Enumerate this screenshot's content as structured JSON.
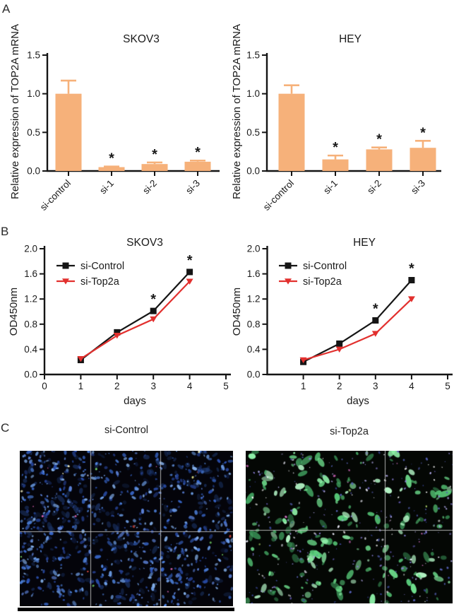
{
  "figure": {
    "panel_a_label": "A",
    "panel_b_label": "B",
    "panel_c_label": "C",
    "panel_c_images": [
      {
        "label": "si-Control",
        "description": "fluorescence micrograph, dense blue-stained nuclei on black background, 2x3 stitched grid",
        "background": "#04040a",
        "seed": 1337,
        "layers": [
          {
            "count": 220,
            "rmin": 1.6,
            "rmax": 3.4,
            "stretch": 2.2,
            "alpha_min": 0.2,
            "alpha_max": 0.5,
            "colors": [
              "#1d3a86",
              "#27498e",
              "#203f7a",
              "#2c55a8"
            ]
          },
          {
            "count": 760,
            "rmin": 0.6,
            "rmax": 2.4,
            "stretch": 2.0,
            "alpha_min": 0.55,
            "alpha_max": 1.0,
            "colors": [
              "#2a4fae",
              "#3a6ad0",
              "#4f84e0",
              "#6e9fe8",
              "#253f8e",
              "#5a7fd4",
              "#87b4f0"
            ]
          },
          {
            "count": 26,
            "rmin": 0.7,
            "rmax": 1.7,
            "stretch": 1.3,
            "alpha_min": 0.7,
            "alpha_max": 1.0,
            "colors": [
              "#7ae06a",
              "#f5f2c0",
              "#eaeaff",
              "#e066b6",
              "#d8493f",
              "#f0ec90"
            ]
          }
        ],
        "grid_v": [
          0.33,
          0.66
        ],
        "grid_h": [
          0.52
        ],
        "grid_color": "rgba(205,205,205,0.85)"
      },
      {
        "label": "si-Top2a",
        "description": "fluorescence micrograph, bright green cells with scattered blue/violet nuclei on black background, stitched grid",
        "background": "#040704",
        "seed": 2024,
        "layers": [
          {
            "count": 200,
            "rmin": 1.2,
            "rmax": 4.4,
            "stretch": 2.4,
            "alpha_min": 0.55,
            "alpha_max": 1.0,
            "colors": [
              "#57c878",
              "#6fe08e",
              "#8ef0a8",
              "#41a05f",
              "#b2f4c4",
              "#358750"
            ]
          },
          {
            "count": 300,
            "rmin": 0.5,
            "rmax": 1.5,
            "stretch": 1.6,
            "alpha_min": 0.5,
            "alpha_max": 1.0,
            "colors": [
              "#8a7fd8",
              "#6a5fc0",
              "#b0a8e8",
              "#e8e8f4",
              "#ffffff",
              "#5560b4",
              "#3c49a0"
            ]
          },
          {
            "count": 16,
            "rmin": 0.8,
            "rmax": 1.7,
            "stretch": 1.3,
            "alpha_min": 0.6,
            "alpha_max": 0.95,
            "colors": [
              "#d873c8",
              "#c45fb0",
              "#b8e070"
            ]
          }
        ],
        "grid_v": [
          0.672
        ],
        "grid_h": [
          0.52
        ],
        "grid_color": "rgba(205,205,205,0.85)"
      }
    ]
  },
  "chart_data": [
    {
      "id": "a-skov3",
      "type": "bar",
      "title": "SKOV3",
      "ylabel": "Relative expression of TOP2A mRNA",
      "categories": [
        "si-control",
        "si-1",
        "si-2",
        "si-3"
      ],
      "values": [
        1.0,
        0.05,
        0.09,
        0.12
      ],
      "errors": [
        0.17,
        0.008,
        0.02,
        0.015
      ],
      "annotations": [
        "",
        "*",
        "*",
        "*"
      ],
      "bar_color": "#F6B17A",
      "ylim": [
        0,
        1.5
      ],
      "yticks": [
        0,
        0.5,
        1.0,
        1.5
      ],
      "grid": "off"
    },
    {
      "id": "a-hey",
      "type": "bar",
      "title": "HEY",
      "ylabel": "Relative expression of TOP2A mRNA",
      "categories": [
        "si-control",
        "si-1",
        "si-2",
        "si-3"
      ],
      "values": [
        1.0,
        0.15,
        0.28,
        0.3
      ],
      "errors": [
        0.11,
        0.05,
        0.025,
        0.09
      ],
      "annotations": [
        "",
        "*",
        "*",
        "*"
      ],
      "bar_color": "#F6B17A",
      "ylim": [
        0,
        1.5
      ],
      "yticks": [
        0,
        0.5,
        1.0,
        1.5
      ],
      "grid": "off"
    },
    {
      "id": "b-skov3",
      "type": "line",
      "title": "SKOV3",
      "xlabel": "days",
      "ylabel": "OD450nm",
      "x": [
        1,
        2,
        3,
        4
      ],
      "series": [
        {
          "name": "si-Control",
          "color": "#151515",
          "marker": "square",
          "values": [
            0.23,
            0.67,
            1.01,
            1.63
          ]
        },
        {
          "name": "si-Top2a",
          "color": "#E2302E",
          "marker": "triangle-down",
          "values": [
            0.25,
            0.62,
            0.88,
            1.48
          ]
        }
      ],
      "annotations": [
        {
          "x": 3,
          "text": "*"
        },
        {
          "x": 4,
          "text": "*"
        }
      ],
      "xlim": [
        0,
        5
      ],
      "xticks": [
        0,
        1,
        2,
        3,
        4,
        5
      ],
      "ylim": [
        0,
        2.0
      ],
      "yticks": [
        0,
        0.4,
        0.8,
        1.2,
        1.6,
        2.0
      ],
      "legend_position": "top-left",
      "grid": "off"
    },
    {
      "id": "b-hey",
      "type": "line",
      "title": "HEY",
      "xlabel": "days",
      "ylabel": "OD450nm",
      "x": [
        1,
        2,
        3,
        4
      ],
      "series": [
        {
          "name": "si-Control",
          "color": "#151515",
          "marker": "square",
          "values": [
            0.2,
            0.49,
            0.86,
            1.5
          ]
        },
        {
          "name": "si-Top2a",
          "color": "#E2302E",
          "marker": "triangle-down",
          "values": [
            0.23,
            0.4,
            0.65,
            1.2
          ]
        }
      ],
      "annotations": [
        {
          "x": 3,
          "text": "*"
        },
        {
          "x": 4,
          "text": "*"
        }
      ],
      "xlim": [
        0,
        5
      ],
      "xticks": [
        1,
        2,
        3,
        4,
        5
      ],
      "ylim": [
        0,
        2.0
      ],
      "yticks": [
        0,
        0.4,
        0.8,
        1.2,
        1.6,
        2.0
      ],
      "legend_position": "top-left",
      "grid": "off"
    }
  ]
}
